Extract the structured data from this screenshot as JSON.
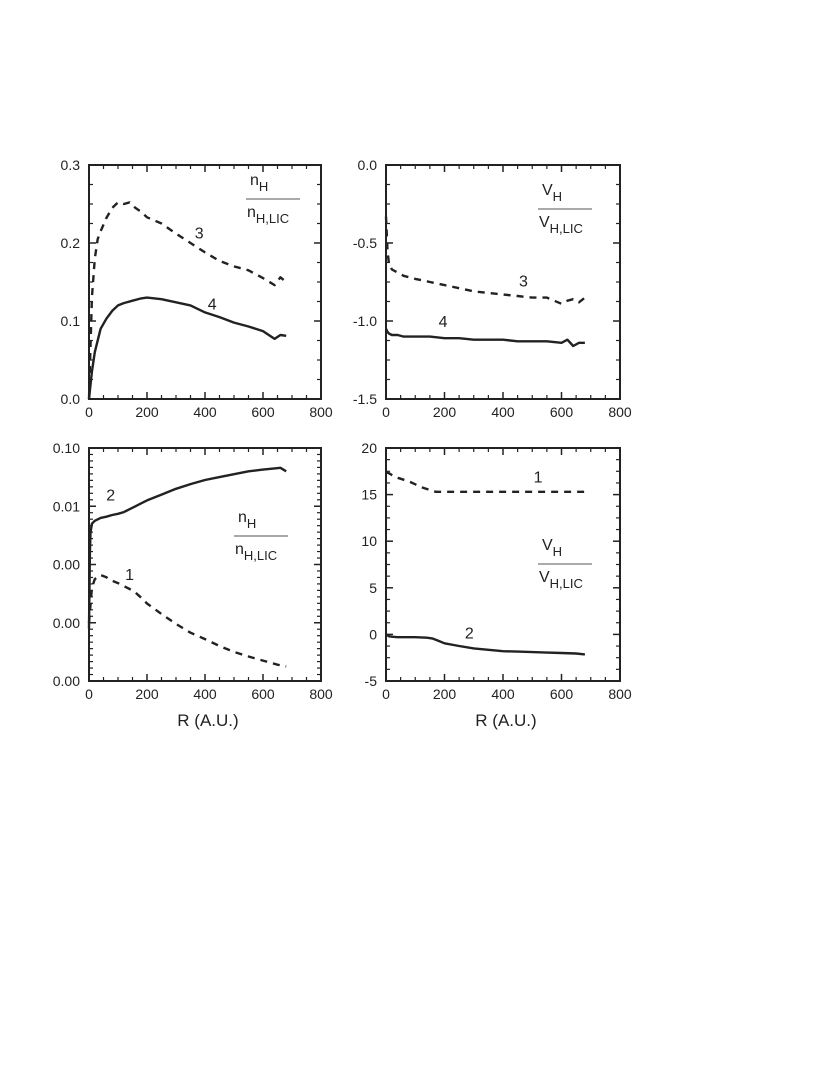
{
  "colors": {
    "line": "#222222",
    "axis": "#222222",
    "background": "#ffffff"
  },
  "chart_data": [
    {
      "type": "line",
      "xlim": [
        0,
        800
      ],
      "ylim": [
        0,
        0.3
      ],
      "x_ticks": [
        "0",
        "200",
        "400",
        "600",
        "800"
      ],
      "y_ticks": [
        "0.0",
        "0.1",
        "0.2",
        "0.3"
      ],
      "xlabel": "",
      "ratio_label": {
        "num": "n",
        "num_sub": "H",
        "den": "n",
        "den_sub": "H,LIC"
      },
      "series": [
        {
          "name": "3",
          "style": "dashed",
          "x": [
            0,
            10,
            20,
            30,
            40,
            60,
            80,
            100,
            120,
            140,
            160,
            180,
            200,
            250,
            300,
            350,
            400,
            450,
            500,
            550,
            600,
            640,
            660,
            680
          ],
          "y": [
            0,
            0.13,
            0.18,
            0.205,
            0.215,
            0.232,
            0.245,
            0.252,
            0.25,
            0.252,
            0.245,
            0.24,
            0.233,
            0.225,
            0.212,
            0.2,
            0.188,
            0.177,
            0.17,
            0.165,
            0.155,
            0.146,
            0.156,
            0.15
          ],
          "label_at": [
            380,
            0.206
          ]
        },
        {
          "name": "4",
          "style": "solid",
          "x": [
            0,
            10,
            20,
            40,
            60,
            80,
            100,
            120,
            150,
            180,
            200,
            250,
            300,
            350,
            400,
            450,
            500,
            550,
            600,
            640,
            660,
            680
          ],
          "y": [
            0,
            0.035,
            0.06,
            0.09,
            0.103,
            0.113,
            0.12,
            0.123,
            0.126,
            0.129,
            0.13,
            0.128,
            0.124,
            0.12,
            0.111,
            0.105,
            0.098,
            0.093,
            0.087,
            0.077,
            0.082,
            0.081
          ],
          "label_at": [
            425,
            0.115
          ]
        }
      ]
    },
    {
      "type": "line",
      "xlim": [
        0,
        800
      ],
      "ylim": [
        -1.5,
        0.0
      ],
      "x_ticks": [
        "0",
        "200",
        "400",
        "600",
        "800"
      ],
      "y_ticks": [
        "-1.5",
        "-1.0",
        "-0.5",
        "0.0"
      ],
      "xlabel": "",
      "ratio_label": {
        "num": "V",
        "num_sub": "H",
        "den": "V",
        "den_sub": "H,LIC"
      },
      "series": [
        {
          "name": "3",
          "style": "dashed",
          "x": [
            0,
            5,
            10,
            20,
            40,
            60,
            100,
            150,
            200,
            250,
            300,
            350,
            400,
            450,
            500,
            550,
            600,
            620,
            640,
            660,
            680
          ],
          "y": [
            -0.33,
            -0.55,
            -0.63,
            -0.67,
            -0.69,
            -0.71,
            -0.73,
            -0.75,
            -0.77,
            -0.79,
            -0.81,
            -0.82,
            -0.83,
            -0.84,
            -0.85,
            -0.85,
            -0.89,
            -0.87,
            -0.86,
            -0.88,
            -0.85
          ],
          "label_at": [
            470,
            -0.78
          ]
        },
        {
          "name": "4",
          "style": "solid",
          "x": [
            0,
            5,
            10,
            20,
            40,
            60,
            100,
            150,
            200,
            250,
            300,
            350,
            400,
            450,
            500,
            550,
            600,
            620,
            640,
            660,
            680
          ],
          "y": [
            -1.05,
            -1.07,
            -1.08,
            -1.09,
            -1.09,
            -1.1,
            -1.1,
            -1.1,
            -1.11,
            -1.11,
            -1.12,
            -1.12,
            -1.12,
            -1.13,
            -1.13,
            -1.13,
            -1.14,
            -1.12,
            -1.16,
            -1.14,
            -1.14
          ],
          "label_at": [
            195,
            -1.04
          ]
        }
      ]
    },
    {
      "type": "line",
      "xlim": [
        0,
        800
      ],
      "ylim": [
        0,
        4
      ],
      "x_ticks": [
        "0",
        "200",
        "400",
        "600",
        "800"
      ],
      "y_ticks": [
        "0.00",
        "0.00",
        "0.00",
        "0.01",
        "0.10"
      ],
      "xlabel": "R (A.U.)",
      "ratio_label": {
        "num": "n",
        "num_sub": "H",
        "den": "n",
        "den_sub": "H,LIC"
      },
      "series": [
        {
          "name": "2",
          "style": "solid",
          "x": [
            0,
            3,
            5,
            10,
            20,
            40,
            60,
            80,
            100,
            120,
            140,
            160,
            180,
            200,
            250,
            300,
            350,
            400,
            450,
            500,
            550,
            600,
            640,
            660,
            680
          ],
          "y": [
            0.9,
            2.2,
            2.55,
            2.7,
            2.75,
            2.8,
            2.82,
            2.85,
            2.87,
            2.9,
            2.95,
            3.0,
            3.05,
            3.1,
            3.2,
            3.3,
            3.38,
            3.45,
            3.5,
            3.55,
            3.6,
            3.63,
            3.65,
            3.66,
            3.6
          ],
          "label_at": [
            75,
            3.1
          ]
        },
        {
          "name": "1",
          "style": "dashed",
          "x": [
            0,
            10,
            20,
            40,
            60,
            80,
            100,
            120,
            140,
            160,
            180,
            200,
            250,
            300,
            350,
            400,
            450,
            500,
            550,
            600,
            650,
            680
          ],
          "y": [
            1.0,
            1.6,
            1.75,
            1.82,
            1.78,
            1.72,
            1.68,
            1.63,
            1.58,
            1.52,
            1.43,
            1.33,
            1.15,
            0.98,
            0.83,
            0.72,
            0.6,
            0.5,
            0.42,
            0.35,
            0.28,
            0.25
          ],
          "label_at": [
            140,
            1.73
          ]
        }
      ]
    },
    {
      "type": "line",
      "xlim": [
        0,
        800
      ],
      "ylim": [
        -5,
        20
      ],
      "x_ticks": [
        "0",
        "200",
        "400",
        "600",
        "800"
      ],
      "y_ticks": [
        "-5",
        "0",
        "5",
        "10",
        "15",
        "20"
      ],
      "xlabel": "R (A.U.)",
      "ratio_label": {
        "num": "V",
        "num_sub": "H",
        "den": "V",
        "den_sub": "H,LIC"
      },
      "series": [
        {
          "name": "1",
          "style": "dashed",
          "x": [
            0,
            10,
            20,
            40,
            60,
            80,
            100,
            120,
            140,
            160,
            170,
            180,
            200,
            300,
            400,
            500,
            600,
            680
          ],
          "y": [
            17.4,
            17.3,
            17.1,
            16.8,
            16.6,
            16.4,
            16.1,
            15.8,
            15.6,
            15.4,
            15.3,
            15.3,
            15.3,
            15.3,
            15.3,
            15.3,
            15.3,
            15.3
          ],
          "label_at": [
            520,
            16.3
          ]
        },
        {
          "name": "2",
          "style": "solid",
          "x": [
            0,
            10,
            20,
            40,
            60,
            100,
            140,
            160,
            180,
            200,
            250,
            300,
            350,
            400,
            450,
            500,
            550,
            600,
            650,
            680
          ],
          "y": [
            0,
            -0.2,
            -0.25,
            -0.3,
            -0.3,
            -0.3,
            -0.35,
            -0.45,
            -0.7,
            -0.95,
            -1.25,
            -1.5,
            -1.65,
            -1.8,
            -1.85,
            -1.9,
            -1.95,
            -2.0,
            -2.05,
            -2.15
          ],
          "label_at": [
            285,
            -0.45
          ]
        }
      ]
    }
  ]
}
